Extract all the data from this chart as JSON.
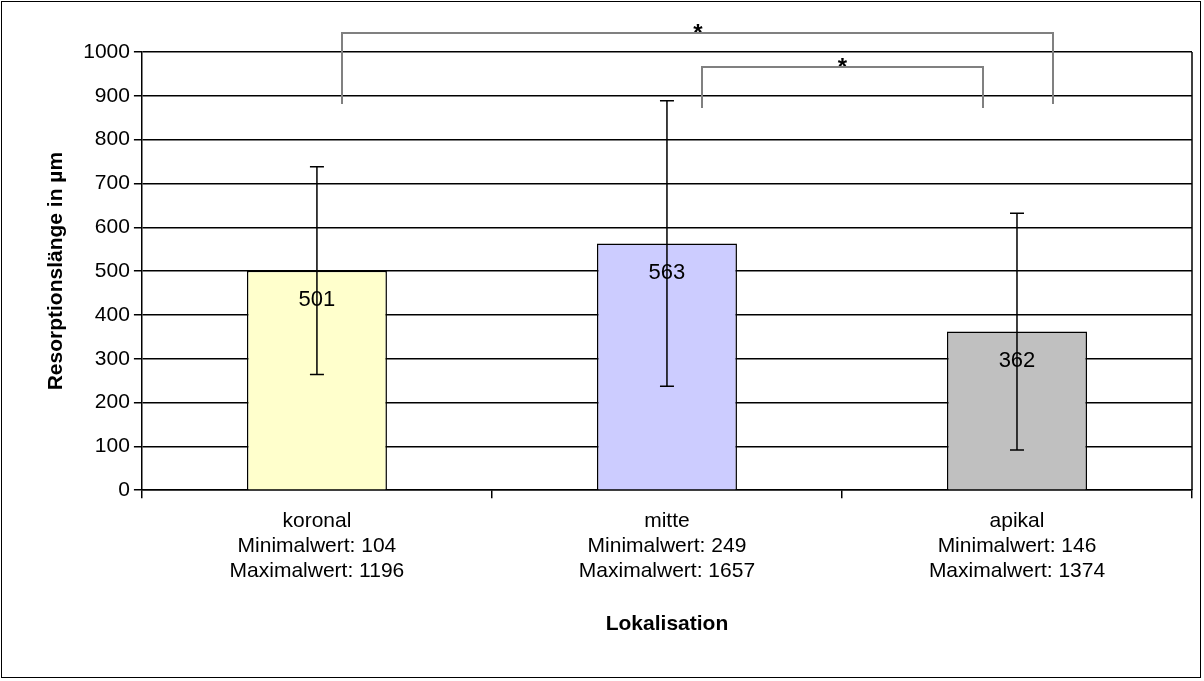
{
  "chart_data": {
    "type": "bar",
    "categories": [
      "koronal\nMinimalwert: 104\nMaximalwert: 1196",
      "mitte\nMinimalwert: 249\nMaximalwert: 1657",
      "apikal\nMinimalwert: 146\nMaximalwert: 1374"
    ],
    "values": [
      501,
      563,
      362
    ],
    "colors": [
      "#ffffcc",
      "#ccccff",
      "#c0c0c0"
    ],
    "errors": [
      237,
      326,
      270
    ],
    "data_labels": true,
    "xlabel": "Lokalisation",
    "ylabel": "Resorptionslänge in µm",
    "ylim": [
      0,
      1000
    ],
    "yticks": [
      0,
      100,
      200,
      300,
      400,
      500,
      600,
      700,
      800,
      900,
      1000
    ],
    "grid": "y",
    "annotations": [
      "*",
      "*"
    ]
  }
}
